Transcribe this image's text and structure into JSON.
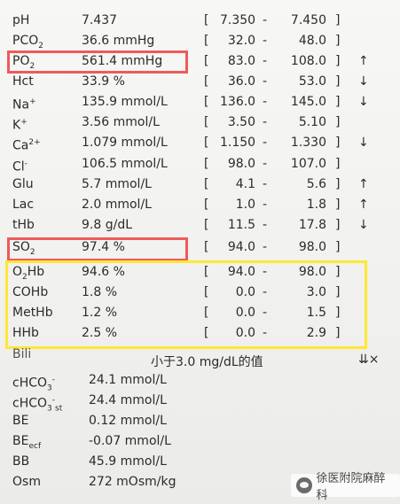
{
  "rows": [
    {
      "name": "pH",
      "value": "7.437",
      "low": "7.350",
      "high": "7.450",
      "flag": ""
    },
    {
      "name": "PCO",
      "sub": "2",
      "value": "36.6 mmHg",
      "low": "32.0",
      "high": "48.0",
      "flag": ""
    },
    {
      "name": "PO",
      "sub": "2",
      "value": "561.4 mmHg",
      "low": "83.0",
      "high": "108.0",
      "flag": "↑"
    },
    {
      "name": "Hct",
      "value": "33.9 %",
      "low": "36.0",
      "high": "53.0",
      "flag": "↓"
    },
    {
      "name": "Na",
      "sup": "+",
      "value": "135.9 mmol/L",
      "low": "136.0",
      "high": "145.0",
      "flag": "↓"
    },
    {
      "name": "K",
      "sup": "+",
      "value": "3.56 mmol/L",
      "low": "3.50",
      "high": "5.10",
      "flag": ""
    },
    {
      "name": "Ca",
      "sup": "2+",
      "value": "1.079 mmol/L",
      "low": "1.150",
      "high": "1.330",
      "flag": "↓"
    },
    {
      "name": "Cl",
      "sup": "-",
      "value": "106.5 mmol/L",
      "low": "98.0",
      "high": "107.0",
      "flag": ""
    },
    {
      "name": "Glu",
      "value": "5.7 mmol/L",
      "low": "4.1",
      "high": "5.6",
      "flag": "↑"
    },
    {
      "name": "Lac",
      "value": "2.0 mmol/L",
      "low": "1.0",
      "high": "1.8",
      "flag": "↑"
    },
    {
      "name": "tHb",
      "value": "9.8 g/dL",
      "low": "11.5",
      "high": "17.8",
      "flag": "↓"
    },
    {
      "name": "SO",
      "sub": "2",
      "value": "97.4 %",
      "low": "94.0",
      "high": "98.0",
      "flag": ""
    },
    {
      "name": "O",
      "sub": "2",
      "name2": "Hb",
      "value": "94.6 %",
      "low": "94.0",
      "high": "98.0",
      "flag": ""
    },
    {
      "name": "COHb",
      "value": "1.8 %",
      "low": "0.0",
      "high": "3.0",
      "flag": ""
    },
    {
      "name": "MetHb",
      "value": "1.2 %",
      "low": "0.0",
      "high": "1.5",
      "flag": ""
    },
    {
      "name": "HHb",
      "value": "2.5 %",
      "low": "0.0",
      "high": "2.9",
      "flag": ""
    }
  ],
  "bili": {
    "name": "Bili",
    "note": "小于3.0 mg/dL的值",
    "flag": "⇊×"
  },
  "lower": [
    {
      "name": "cHCO",
      "sub": "3",
      "sup": "-",
      "value": "24.1 mmol/L"
    },
    {
      "name": "cHCO",
      "sub": "3",
      "sup": "-",
      "sub2": "st",
      "value": "24.4 mmol/L"
    },
    {
      "name": "BE",
      "value": "0.12 mmol/L"
    },
    {
      "name": "BE",
      "sub": "ecf",
      "value": "-0.07 mmol/L"
    },
    {
      "name": "BB",
      "value": "45.9 mmol/L"
    },
    {
      "name": "Osm",
      "value": "272 mOsm/kg"
    }
  ],
  "watermark": {
    "label": "徐医附院麻醉科",
    "icon": "wechat-icon"
  },
  "colors": {
    "highlight_red": "#ef5a5a",
    "highlight_yellow": "#ffe833"
  }
}
